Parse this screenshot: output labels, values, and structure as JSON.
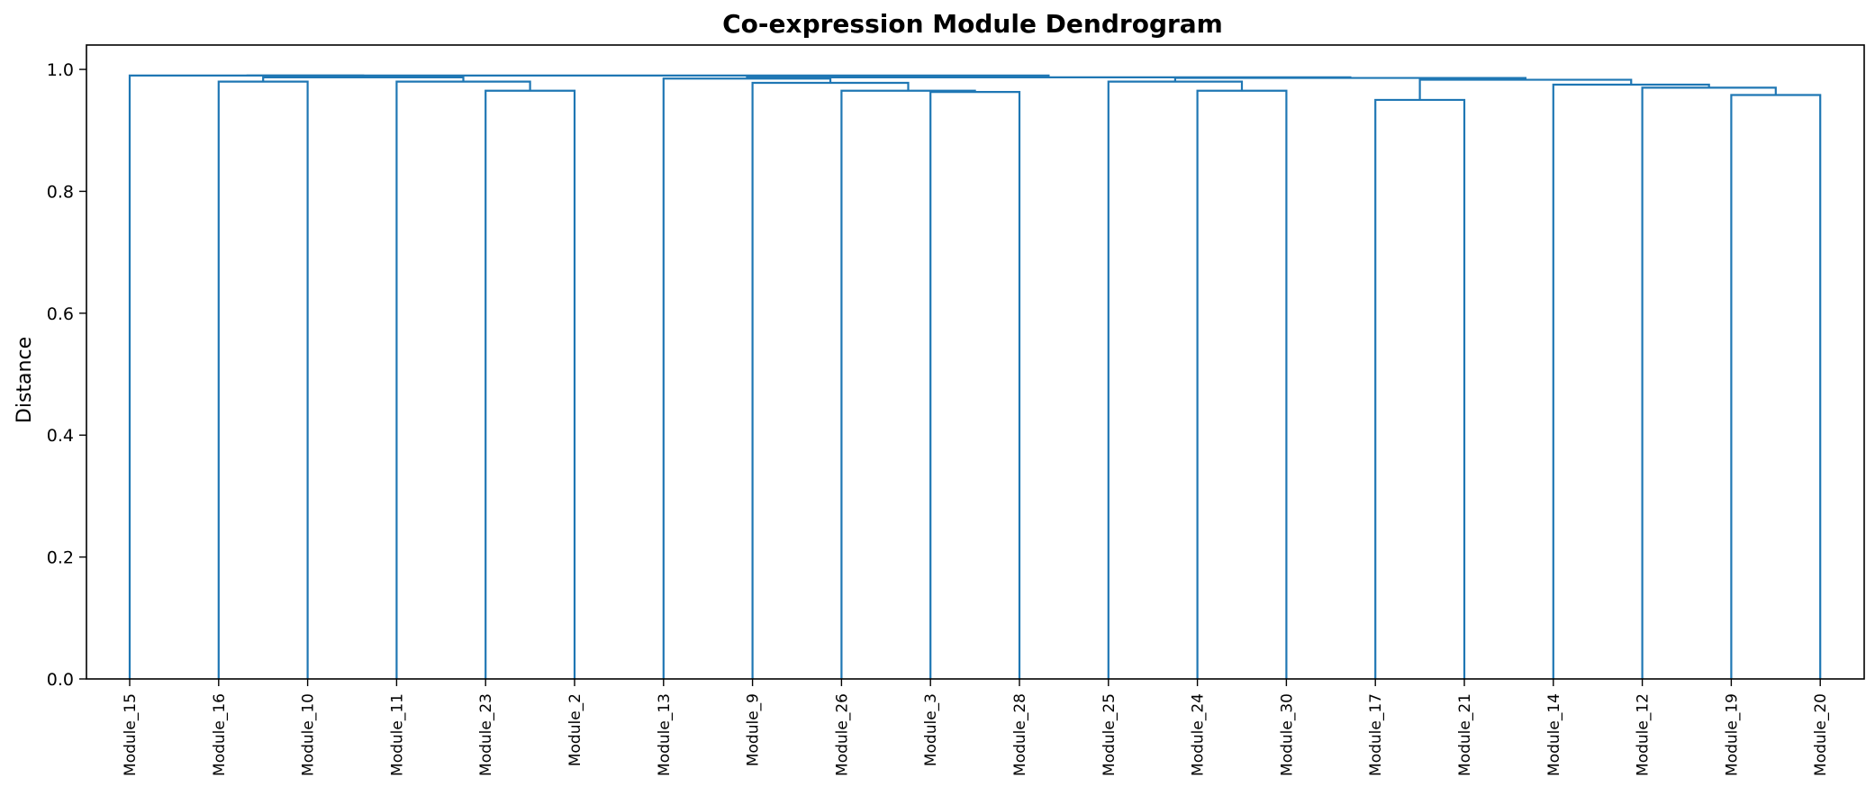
{
  "chart_data": {
    "type": "dendrogram",
    "title": "Co-expression Module Dendrogram",
    "xlabel": "",
    "ylabel": "Distance",
    "ylim": [
      0,
      1.04
    ],
    "yticks": [
      0.0,
      0.2,
      0.4,
      0.6,
      0.8,
      1.0
    ],
    "ytick_labels": [
      "0.0",
      "0.2",
      "0.4",
      "0.6",
      "0.8",
      "1.0"
    ],
    "grid": false,
    "color": "#1f77b4",
    "leaves": [
      "Module_15",
      "Module_16",
      "Module_10",
      "Module_11",
      "Module_23",
      "Module_2",
      "Module_13",
      "Module_9",
      "Module_26",
      "Module_3",
      "Module_28",
      "Module_25",
      "Module_24",
      "Module_30",
      "Module_17",
      "Module_21",
      "Module_14",
      "Module_12",
      "Module_19",
      "Module_20"
    ],
    "merges": [
      {
        "left": "Module_16",
        "right": "Module_10",
        "height": 0.98
      },
      {
        "left": "Module_23",
        "right": "Module_2",
        "height": 0.965
      },
      {
        "left": "Module_11",
        "right": "[Module_23, Module_2]",
        "height": 0.98
      },
      {
        "left": "[Module_16, Module_10]",
        "right": "[Module_11, ...]",
        "height": 0.987
      },
      {
        "left": "Module_15",
        "right": "[Module_16 ... Module_2]",
        "height": 0.99
      },
      {
        "left": "Module_3",
        "right": "Module_28",
        "height": 0.963
      },
      {
        "left": "Module_26",
        "right": "[Module_3, Module_28]",
        "height": 0.965
      },
      {
        "left": "Module_9",
        "right": "[Module_26, ...]",
        "height": 0.978
      },
      {
        "left": "Module_13",
        "right": "[Module_9, ...]",
        "height": 0.985
      },
      {
        "left": "Module_24",
        "right": "Module_30",
        "height": 0.965
      },
      {
        "left": "Module_25",
        "right": "[Module_24, Module_30]",
        "height": 0.98
      },
      {
        "left": "Module_17",
        "right": "Module_21",
        "height": 0.95
      },
      {
        "left": "Module_19",
        "right": "Module_20",
        "height": 0.958
      },
      {
        "left": "Module_12",
        "right": "[Module_19, Module_20]",
        "height": 0.97
      },
      {
        "left": "Module_14",
        "right": "[Module_12, ...]",
        "height": 0.975
      },
      {
        "left": "[Module_17, Module_21]",
        "right": "[Module_14, ...]",
        "height": 0.983
      },
      {
        "left": "[Module_25, ...]",
        "right": "[Module_17, ...]",
        "height": 0.986
      },
      {
        "left": "[Module_13, ...]",
        "right": "[Module_25, ...]",
        "height": 0.987
      },
      {
        "left": "[Module_15, ...]",
        "right": "[Module_13, ...]",
        "height": 0.99
      }
    ]
  }
}
